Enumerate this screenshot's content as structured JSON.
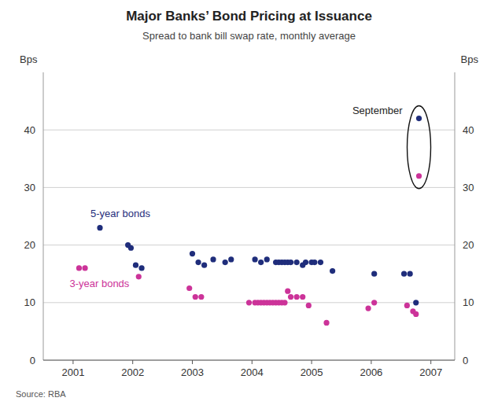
{
  "chart_data": {
    "type": "scatter",
    "title": "Major Banks’ Bond Pricing at Issuance",
    "subtitle": "Spread to bank bill swap rate, monthly average",
    "ylabel": "Bps",
    "y2label": "Bps",
    "source": "Source: RBA",
    "annotation": "September",
    "xlim": [
      2000.5,
      2007.4
    ],
    "ylim": [
      0,
      50
    ],
    "y2lim": [
      0,
      50
    ],
    "xticks": [
      2001,
      2002,
      2003,
      2004,
      2005,
      2006,
      2007
    ],
    "yticks": [
      0,
      10,
      20,
      30,
      40
    ],
    "y2ticks": [
      0,
      10,
      20,
      30,
      40
    ],
    "grid": true,
    "series": [
      {
        "name": "5-year bonds",
        "color": "#1f2d7b",
        "x": [
          2001.45,
          2001.92,
          2001.97,
          2002.05,
          2002.15,
          2003.0,
          2003.1,
          2003.2,
          2003.35,
          2003.55,
          2003.65,
          2004.05,
          2004.15,
          2004.25,
          2004.4,
          2004.45,
          2004.5,
          2004.55,
          2004.6,
          2004.65,
          2004.75,
          2004.85,
          2004.9,
          2005.0,
          2005.05,
          2005.15,
          2005.35,
          2006.05,
          2006.55,
          2006.65,
          2006.75,
          2006.8
        ],
        "values": [
          23,
          20,
          19.5,
          16.5,
          16,
          18.5,
          17,
          16.5,
          17.5,
          17,
          17.5,
          17.5,
          17,
          17.5,
          17,
          17,
          17,
          17,
          17,
          17,
          17,
          16.5,
          17,
          17,
          17,
          17,
          15.5,
          15,
          15,
          15,
          10,
          42
        ]
      },
      {
        "name": "3-year bonds",
        "color": "#cc3399",
        "x": [
          2001.1,
          2001.2,
          2002.1,
          2002.95,
          2003.05,
          2003.15,
          2003.95,
          2004.05,
          2004.1,
          2004.15,
          2004.2,
          2004.25,
          2004.3,
          2004.35,
          2004.4,
          2004.45,
          2004.5,
          2004.55,
          2004.6,
          2004.65,
          2004.75,
          2004.85,
          2004.95,
          2005.25,
          2005.95,
          2006.05,
          2006.6,
          2006.7,
          2006.75,
          2006.8
        ],
        "values": [
          16,
          16,
          14.5,
          12.5,
          11,
          11,
          10,
          10,
          10,
          10,
          10,
          10,
          10,
          10,
          10,
          10,
          10,
          10,
          12,
          11,
          11,
          11,
          9.5,
          6.5,
          9,
          10,
          9.5,
          8.5,
          8,
          32
        ]
      }
    ]
  }
}
